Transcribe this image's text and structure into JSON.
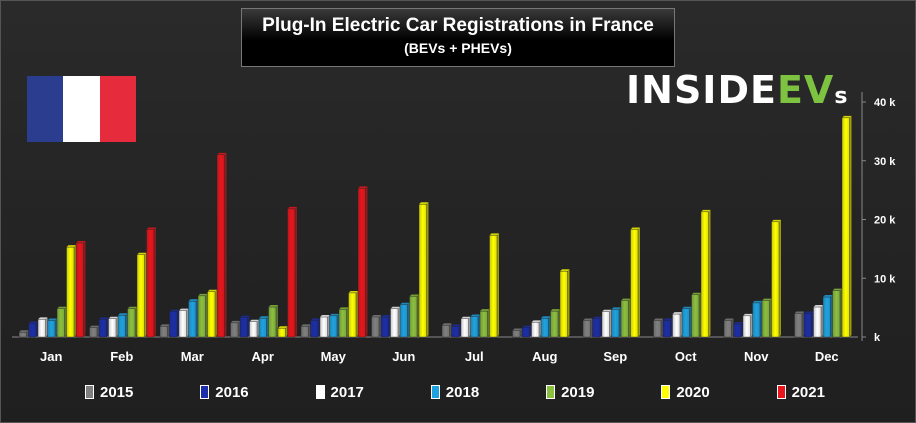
{
  "title": "Plug-In Electric Car Registrations in France",
  "subtitle": "(BEVs + PHEVs)",
  "logo": {
    "main": "INSIDE",
    "accent": "EV",
    "tail": "s"
  },
  "flag_colors": [
    "#2b3d8f",
    "#ffffff",
    "#e52b3c"
  ],
  "chart_data": {
    "type": "bar",
    "title": "Plug-In Electric Car Registrations in France",
    "subtitle": "(BEVs + PHEVs)",
    "categories": [
      "Jan",
      "Feb",
      "Mar",
      "Apr",
      "May",
      "Jun",
      "Jul",
      "Aug",
      "Sep",
      "Oct",
      "Nov",
      "Dec"
    ],
    "ylim": [
      0,
      40000
    ],
    "yticks": [
      0,
      10000,
      20000,
      30000,
      40000
    ],
    "ytick_labels": [
      "k",
      "10 k",
      "20 k",
      "30 k",
      "40 k"
    ],
    "y_axis_side": "right",
    "grid": false,
    "legend_position": "bottom",
    "series": [
      {
        "name": "2015",
        "color": "#808080",
        "values": [
          800,
          1600,
          1800,
          2400,
          1800,
          3400,
          2000,
          1100,
          2800,
          2800,
          2800,
          4000
        ]
      },
      {
        "name": "2016",
        "color": "#1c2ea8",
        "values": [
          2300,
          3000,
          4300,
          3300,
          2800,
          3400,
          1800,
          1600,
          3100,
          2800,
          2200,
          4000
        ]
      },
      {
        "name": "2017",
        "color": "#ffffff",
        "values": [
          3000,
          3100,
          4500,
          2600,
          3400,
          4800,
          3100,
          2500,
          4300,
          3900,
          3600,
          5100
        ]
      },
      {
        "name": "2018",
        "color": "#1fa3e0",
        "values": [
          2800,
          3700,
          6100,
          3200,
          3600,
          5500,
          3500,
          3200,
          4700,
          4800,
          5800,
          6800
        ]
      },
      {
        "name": "2019",
        "color": "#8cbf3f",
        "values": [
          4800,
          4800,
          7000,
          5100,
          4700,
          6900,
          4400,
          4400,
          6200,
          7200,
          6200,
          7900
        ]
      },
      {
        "name": "2020",
        "color": "#ffff00",
        "values": [
          15300,
          14000,
          7700,
          1500,
          7500,
          22600,
          17300,
          11200,
          18300,
          21300,
          19600,
          37300
        ]
      },
      {
        "name": "2021",
        "color": "#e8161c",
        "values": [
          16000,
          18300,
          31000,
          21800,
          25300,
          null,
          null,
          null,
          null,
          null,
          null,
          null
        ]
      }
    ]
  }
}
